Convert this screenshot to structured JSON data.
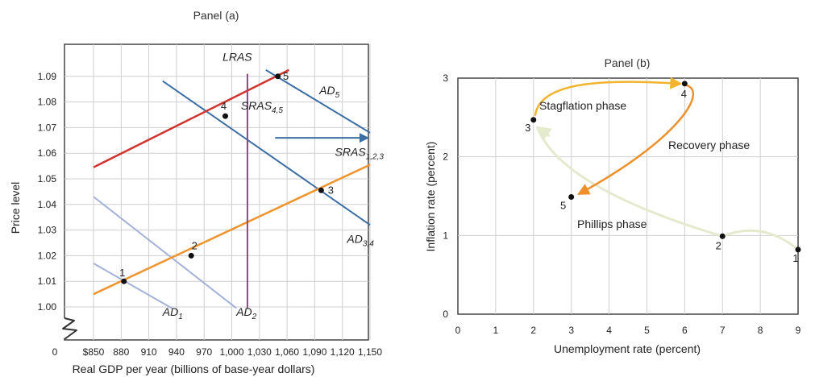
{
  "chart_data": [
    {
      "type": "line",
      "title": "Panel (a)",
      "xlabel": "Real GDP per year (billions of base-year dollars)",
      "ylabel": "Price level",
      "origin_label": "0",
      "x_tick_labels": [
        "$850",
        "880",
        "910",
        "940",
        "970",
        "1,000",
        "1,030",
        "1,060",
        "1,090",
        "1,120",
        "1,150"
      ],
      "x_ticks": [
        850,
        880,
        910,
        940,
        970,
        1000,
        1030,
        1060,
        1090,
        1120,
        1150
      ],
      "xlim": [
        850,
        1150
      ],
      "y_tick_labels": [
        "1.00",
        "1.01",
        "1.02",
        "1.03",
        "1.04",
        "1.05",
        "1.06",
        "1.07",
        "1.08",
        "1.09"
      ],
      "y_ticks": [
        1.0,
        1.01,
        1.02,
        1.03,
        1.04,
        1.05,
        1.06,
        1.07,
        1.08,
        1.09
      ],
      "ylim": [
        0.995,
        1.091
      ],
      "axis_break": true,
      "grid": true,
      "series": [
        {
          "name": "AD",
          "sub": "1",
          "color": "#a3b1d8",
          "width": 2,
          "x": [
            850,
            935
          ],
          "y": [
            1.017,
            0.9995
          ],
          "label_pos": [
            925,
            0.9965
          ]
        },
        {
          "name": "AD",
          "sub": "2",
          "color": "#a3b1d8",
          "width": 2,
          "x": [
            850,
            1005
          ],
          "y": [
            1.043,
            0.9995
          ],
          "label_pos": [
            1005,
            0.9965
          ]
        },
        {
          "name": "AD",
          "sub": "3,4",
          "color": "#3a6ea5",
          "width": 2,
          "x": [
            925,
            1150
          ],
          "y": [
            1.0882,
            1.032
          ],
          "label_pos": [
            1125,
            1.025
          ]
        },
        {
          "name": "AD",
          "sub": "5",
          "color": "#3a6ea5",
          "width": 2,
          "x": [
            1037,
            1150
          ],
          "y": [
            1.0925,
            1.068
          ],
          "label_pos": [
            1095,
            1.083
          ]
        },
        {
          "name": "SRAS",
          "sub": "1,2,3",
          "color": "#f0932c",
          "width": 2.5,
          "x": [
            850,
            1150
          ],
          "y": [
            1.005,
            1.0555
          ],
          "label_pos": [
            1112,
            1.059
          ]
        },
        {
          "name": "SRAS",
          "sub": "4,5",
          "color": "#d0342c",
          "width": 2.5,
          "x": [
            850,
            1062
          ],
          "y": [
            1.0545,
            1.0925
          ],
          "label_pos": [
            1010,
            1.077
          ]
        },
        {
          "name": "LRAS",
          "sub": "",
          "color": "#9c3f95",
          "width": 2,
          "x": [
            1017,
            1017
          ],
          "y": [
            0.9995,
            1.091
          ],
          "label_pos": [
            990,
            1.096
          ]
        }
      ],
      "points": [
        {
          "label": "1",
          "x": 883,
          "y": 1.01
        },
        {
          "label": "2",
          "x": 956,
          "y": 1.02
        },
        {
          "label": "3",
          "x": 1097,
          "y": 1.0455
        },
        {
          "label": "4",
          "x": 993,
          "y": 1.0745
        },
        {
          "label": "5",
          "x": 1050,
          "y": 1.09
        }
      ],
      "arrow": {
        "color": "#3a6ea5",
        "from": [
          1047,
          1.066
        ],
        "to": [
          1147,
          1.066
        ]
      }
    },
    {
      "type": "line",
      "title": "Panel (b)",
      "xlabel": "Unemployment rate (percent)",
      "ylabel": "Inflation rate (percent)",
      "x_ticks": [
        0,
        1,
        2,
        3,
        4,
        5,
        6,
        7,
        8,
        9
      ],
      "xlim": [
        0,
        9
      ],
      "y_ticks": [
        0,
        1,
        2,
        3
      ],
      "ylim": [
        0,
        3
      ],
      "grid": true,
      "points": [
        {
          "label": "1",
          "x": 9,
          "y": 0.82
        },
        {
          "label": "2",
          "x": 7,
          "y": 0.99
        },
        {
          "label": "3",
          "x": 2,
          "y": 2.47
        },
        {
          "label": "4",
          "x": 6,
          "y": 2.93
        },
        {
          "label": "5",
          "x": 3,
          "y": 1.49
        }
      ],
      "phases": [
        {
          "name": "Phillips phase",
          "color": "#e4eacd",
          "from": "1",
          "to": "3"
        },
        {
          "name": "Stagflation phase",
          "color": "#f2b42e",
          "from": "3",
          "to": "4"
        },
        {
          "name": "Recovery phase",
          "color": "#ef8f2b",
          "from": "4",
          "to": "5"
        }
      ]
    }
  ]
}
